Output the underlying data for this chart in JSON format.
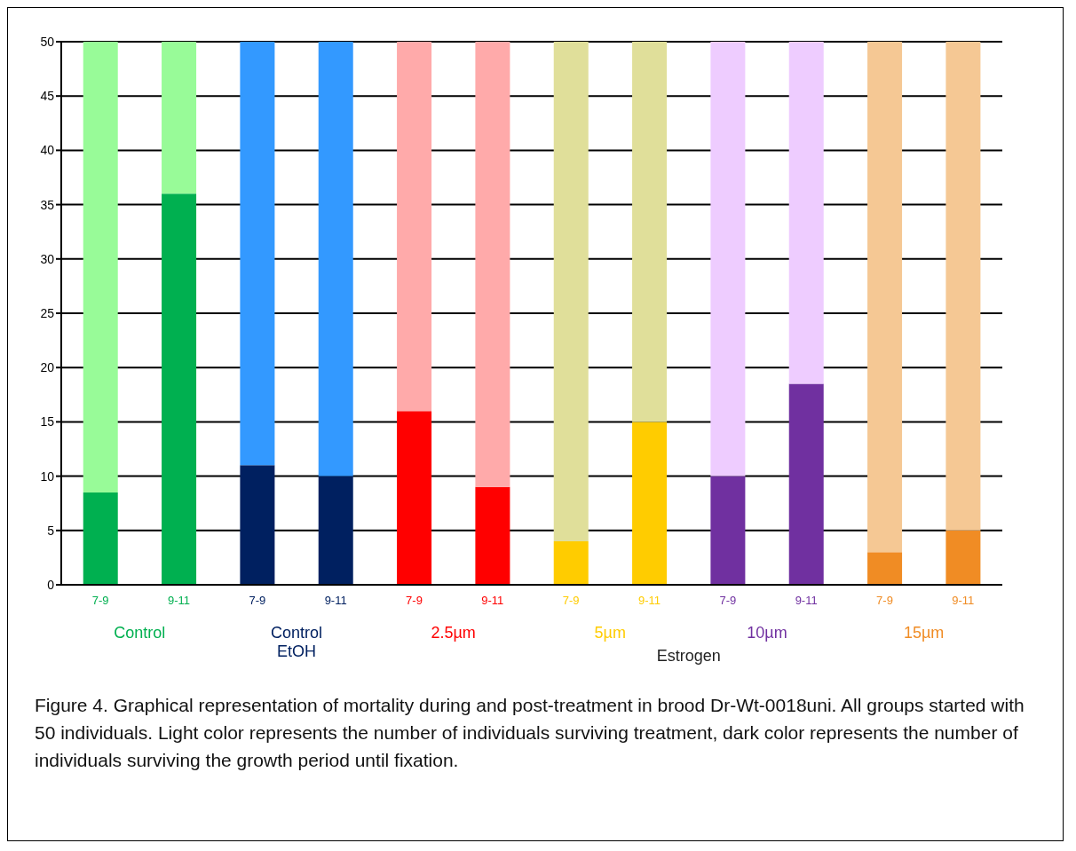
{
  "chart_data": {
    "type": "bar",
    "stacked": true,
    "categories": [
      "7-9",
      "9-11",
      "7-9",
      "9-11",
      "7-9",
      "9-11",
      "7-9",
      "9-11",
      "7-9",
      "9-11",
      "7-9",
      "9-11"
    ],
    "series": [
      {
        "colors": [
          "#00b050",
          "#00b050",
          "#002060",
          "#002060",
          "#ff0000",
          "#ff0000",
          "#ffcc00",
          "#ffcc00",
          "#7030a0",
          "#7030a0",
          "#f08c24",
          "#f08c24"
        ],
        "values": [
          8.5,
          36,
          11,
          10,
          16,
          9,
          4,
          15,
          10,
          18.5,
          3,
          5
        ]
      },
      {
        "colors": [
          "#98fb98",
          "#98fb98",
          "#3399ff",
          "#3399ff",
          "#ffaaaa",
          "#ffaaaa",
          "#e0df9a",
          "#e0df9a",
          "#eeccff",
          "#eeccff",
          "#f5c894",
          "#f5c894"
        ],
        "values": [
          41.5,
          14,
          39,
          40,
          34,
          41,
          46,
          35,
          40,
          31.5,
          47,
          45
        ]
      }
    ],
    "ylim": [
      0,
      50
    ],
    "yticks": [
      0,
      5,
      10,
      15,
      20,
      25,
      30,
      35,
      40,
      45,
      50
    ],
    "grid": "y",
    "legend": false,
    "annotations": [
      "Control",
      "Control EtOH",
      "2.5µm",
      "5µm",
      "10µm",
      "15µm",
      "Estrogen",
      "Figure 4. Graphical representation of mortality during and post-treatment in brood Dr-Wt-0018uni. All groups started with 50 individuals. Light color represents the number of individuals surviving treatment, dark color represents the number of individuals surviving the growth period until fixation."
    ]
  }
}
